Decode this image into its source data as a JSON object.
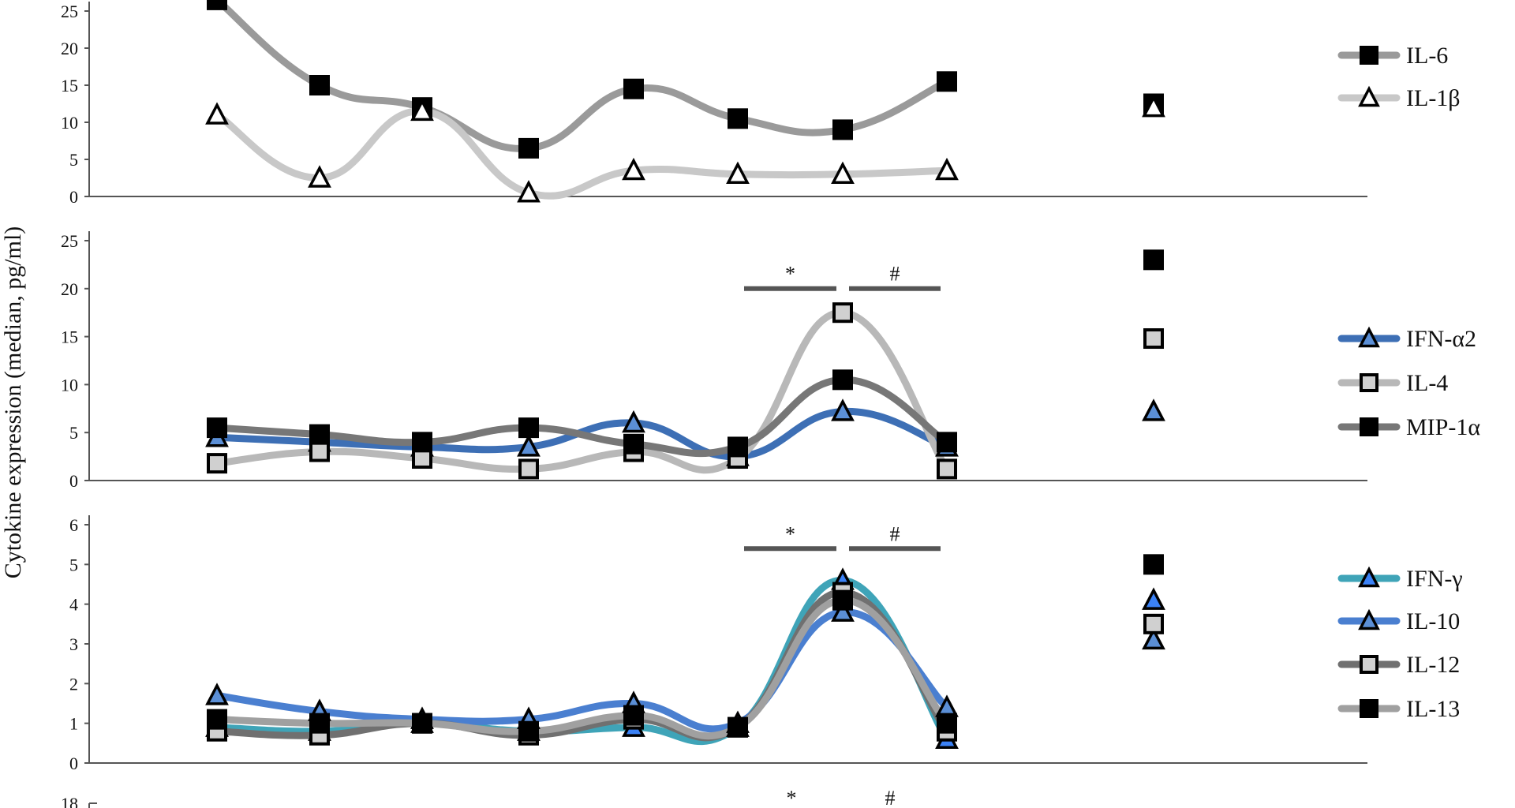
{
  "figure": {
    "y_axis_label": "Cytokine expression (median, pg/ml)"
  },
  "chart_data": [
    {
      "type": "line",
      "panel": "top",
      "x": [
        1,
        2,
        3,
        4,
        5,
        6,
        7,
        8
      ],
      "ylim": [
        0,
        25
      ],
      "yticks": [
        0,
        5,
        10,
        15,
        20,
        25
      ],
      "grid": false,
      "legend_position": "right",
      "series": [
        {
          "name": "IL-6",
          "values": [
            26.5,
            15,
            12,
            6.5,
            14.5,
            10.5,
            9,
            15.5
          ],
          "extra_value": 12.5,
          "line_color": "#9a9a9a",
          "marker": "square",
          "marker_fill": "#000000"
        },
        {
          "name": "IL-1β",
          "values": [
            11,
            2.5,
            11.5,
            0.5,
            3.5,
            3,
            3,
            3.5
          ],
          "extra_value": 12,
          "line_color": "#c8c8c8",
          "marker": "triangle",
          "marker_fill": "#ffffff"
        }
      ],
      "annotations": []
    },
    {
      "type": "line",
      "panel": "middle",
      "x": [
        1,
        2,
        3,
        4,
        5,
        6,
        7,
        8
      ],
      "ylim": [
        0,
        25
      ],
      "yticks": [
        0,
        5,
        10,
        15,
        20,
        25
      ],
      "grid": false,
      "legend_position": "right",
      "series": [
        {
          "name": "IFN-α2",
          "values": [
            4.5,
            4,
            3.5,
            3.5,
            6,
            2.5,
            7.2,
            3.5
          ],
          "extra_value": 7.2,
          "line_color": "#3d6fb5",
          "marker": "triangle",
          "marker_fill": "#5b8fd6"
        },
        {
          "name": "IL-4",
          "values": [
            1.8,
            3,
            2.3,
            1.2,
            3,
            2.3,
            17.5,
            1.2
          ],
          "extra_value": 14.8,
          "line_color": "#b8b8b8",
          "marker": "square",
          "marker_fill": "#d0d0d0"
        },
        {
          "name": "MIP-1α",
          "values": [
            5.5,
            4.8,
            4,
            5.5,
            3.8,
            3.5,
            10.5,
            4
          ],
          "extra_value": 23,
          "line_color": "#777777",
          "marker": "square",
          "marker_fill": "#000000"
        }
      ],
      "annotations": [
        {
          "text": "*",
          "from": 6,
          "to": 7,
          "y": 20,
          "label_y": 21.5
        },
        {
          "text": "#",
          "from": 7,
          "to": 8,
          "y": 20,
          "label_y": 21.5
        }
      ]
    },
    {
      "type": "line",
      "panel": "bottom",
      "x": [
        1,
        2,
        3,
        4,
        5,
        6,
        7,
        8
      ],
      "ylim": [
        0,
        6
      ],
      "yticks": [
        0,
        1,
        2,
        3,
        4,
        5,
        6
      ],
      "grid": false,
      "legend_position": "right",
      "series": [
        {
          "name": "IFN-γ",
          "values": [
            0.9,
            0.8,
            1.0,
            0.8,
            0.9,
            0.9,
            4.6,
            0.6
          ],
          "extra_value": 4.1,
          "line_color": "#3fa4b8",
          "marker": "triangle",
          "marker_fill": "#3b82f6"
        },
        {
          "name": "IL-10",
          "values": [
            1.7,
            1.3,
            1.1,
            1.1,
            1.5,
            1.0,
            3.8,
            1.4
          ],
          "extra_value": 3.1,
          "line_color": "#4a7fd0",
          "marker": "triangle",
          "marker_fill": "#5b8fd6"
        },
        {
          "name": "IL-12",
          "values": [
            0.8,
            0.7,
            1.0,
            0.7,
            1.1,
            0.9,
            4.3,
            0.8
          ],
          "extra_value": 3.5,
          "line_color": "#707070",
          "marker": "square",
          "marker_fill": "#d0d0d0"
        },
        {
          "name": "IL-13",
          "values": [
            1.1,
            1.0,
            1.0,
            0.8,
            1.2,
            0.9,
            4.1,
            1.0
          ],
          "extra_value": 5.0,
          "line_color": "#a0a0a0",
          "marker": "square",
          "marker_fill": "#000000"
        }
      ],
      "annotations": [
        {
          "text": "*",
          "from": 6,
          "to": 7,
          "y": 5.4,
          "label_y": 5.75
        },
        {
          "text": "#",
          "from": 7,
          "to": 8,
          "y": 5.4,
          "label_y": 5.75
        }
      ]
    },
    {
      "type": "line",
      "panel": "partial-bottom",
      "yticks": [
        18
      ],
      "annotations_text": [
        "*",
        "#"
      ]
    }
  ]
}
